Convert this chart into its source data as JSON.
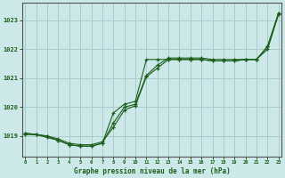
{
  "title": "Graphe pression niveau de la mer (hPa)",
  "background_color": "#cce8e8",
  "grid_color": "#aacccc",
  "line_color": "#1a5e1a",
  "xlim": [
    -0.3,
    23.3
  ],
  "ylim": [
    1018.3,
    1023.6
  ],
  "yticks": [
    1019,
    1020,
    1021,
    1022,
    1023
  ],
  "xticks": [
    0,
    1,
    2,
    3,
    4,
    5,
    6,
    7,
    8,
    9,
    10,
    11,
    12,
    13,
    14,
    15,
    16,
    17,
    18,
    19,
    20,
    21,
    22,
    23
  ],
  "x_labels": [
    "0",
    "1",
    "2",
    "3",
    "4",
    "5",
    "6",
    "7",
    "8",
    "9",
    "10",
    "11",
    "12",
    "13",
    "14",
    "15",
    "16",
    "17",
    "18",
    "19",
    "20",
    "21",
    "22",
    "23"
  ],
  "series1_x": [
    0,
    1,
    2,
    3,
    4,
    5,
    6,
    7,
    8,
    9,
    10,
    11,
    12,
    13,
    14,
    15,
    16,
    17,
    18,
    19,
    20,
    21,
    22,
    23
  ],
  "series1_y": [
    1019.1,
    1019.05,
    1019.0,
    1018.9,
    1018.75,
    1018.7,
    1018.7,
    1018.8,
    1019.3,
    1019.9,
    1020.05,
    1021.05,
    1021.35,
    1021.65,
    1021.65,
    1021.65,
    1021.65,
    1021.6,
    1021.6,
    1021.6,
    1021.65,
    1021.65,
    1022.1,
    1023.25
  ],
  "series2_x": [
    0,
    1,
    2,
    3,
    4,
    5,
    6,
    7,
    8,
    9,
    10,
    11,
    12,
    13,
    14,
    15,
    16,
    17,
    18,
    19,
    20,
    21,
    22,
    23
  ],
  "series2_y": [
    1019.1,
    1019.05,
    1019.0,
    1018.85,
    1018.7,
    1018.65,
    1018.65,
    1018.75,
    1019.8,
    1020.1,
    1020.2,
    1021.65,
    1021.65,
    1021.65,
    1021.65,
    1021.65,
    1021.65,
    1021.6,
    1021.6,
    1021.6,
    1021.65,
    1021.65,
    1022.0,
    1023.2
  ],
  "series3_x": [
    0,
    1,
    2,
    3,
    4,
    5,
    6,
    7,
    8,
    9,
    10,
    11,
    12,
    13,
    14,
    15,
    16,
    17,
    18,
    19,
    20,
    21,
    22,
    23
  ],
  "series3_y": [
    1019.05,
    1019.05,
    1018.95,
    1018.85,
    1018.7,
    1018.65,
    1018.65,
    1018.75,
    1019.45,
    1020.0,
    1020.1,
    1021.1,
    1021.45,
    1021.7,
    1021.7,
    1021.7,
    1021.7,
    1021.65,
    1021.65,
    1021.65,
    1021.65,
    1021.65,
    1022.1,
    1023.25
  ]
}
